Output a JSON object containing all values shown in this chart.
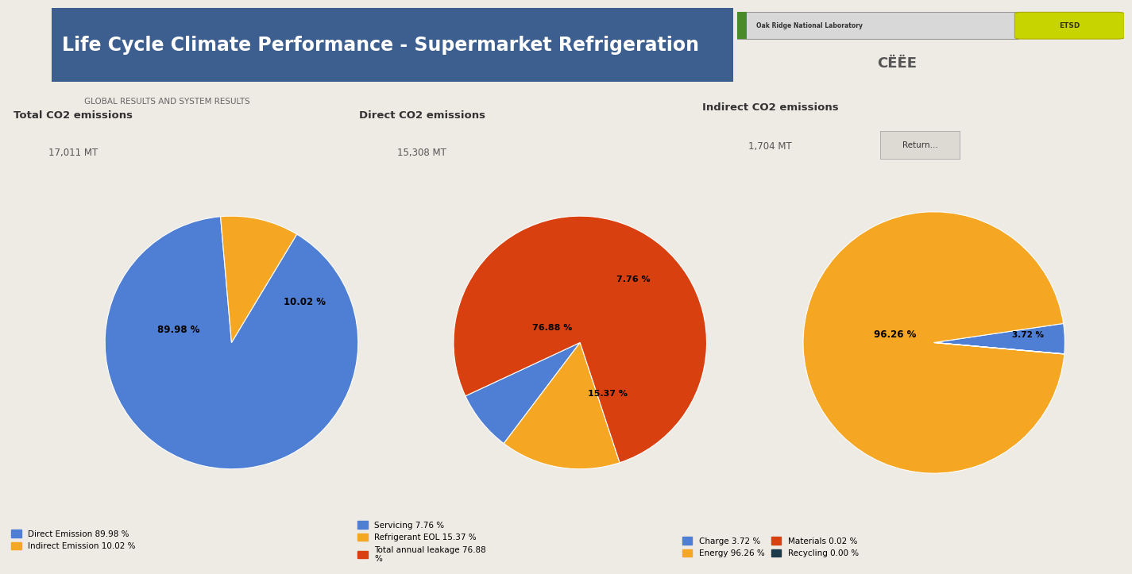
{
  "title": "Life Cycle Climate Performance - Supermarket Refrigeration",
  "title_bg": "#3d5f8f",
  "title_color": "#ffffff",
  "subtitle": "GLOBAL RESULTS AND SYSTEM RESULTS",
  "bg_color": "#eeeae4",
  "pie1_title": "Total CO2 emissions",
  "pie1_subtitle": "17,011 MT",
  "pie1_values": [
    89.98,
    10.02
  ],
  "pie1_label0": "89.98 %",
  "pie1_label1": "10.02 %",
  "pie1_colors": [
    "#4f7fd4",
    "#f5a623"
  ],
  "pie1_legend": [
    "Direct Emission 89.98 %",
    "Indirect Emission 10.02 %"
  ],
  "pie1_startangle": 95,
  "pie2_title": "Direct CO2 emissions",
  "pie2_subtitle": "15,308 MT",
  "pie2_values": [
    7.76,
    15.37,
    76.88
  ],
  "pie2_label0": "7.76 %",
  "pie2_label1": "15.37 %",
  "pie2_label2": "76.88 %",
  "pie2_colors": [
    "#4f7fd4",
    "#f5a623",
    "#d94010"
  ],
  "pie2_legend": [
    "Servicing 7.76 %",
    "Refrigerant EOL 15.37 %",
    "Total annual leakage 76.88\n%"
  ],
  "pie2_startangle": 205,
  "pie3_title": "Indirect CO2 emissions",
  "pie3_subtitle": "1,704 MT",
  "pie3_values": [
    3.72,
    96.26,
    0.02,
    0.0
  ],
  "pie3_label0": "3.72 %",
  "pie3_label1": "96.26 %",
  "pie3_colors": [
    "#4f7fd4",
    "#f5a623",
    "#d94010",
    "#1a3a4a"
  ],
  "pie3_legend_col1": [
    "Charge 3.72 %",
    "Energy 96.26 %"
  ],
  "pie3_legend_col2": [
    "Materials 0.02 %",
    "Recycling 0.00 %"
  ],
  "pie3_startangle": 355
}
